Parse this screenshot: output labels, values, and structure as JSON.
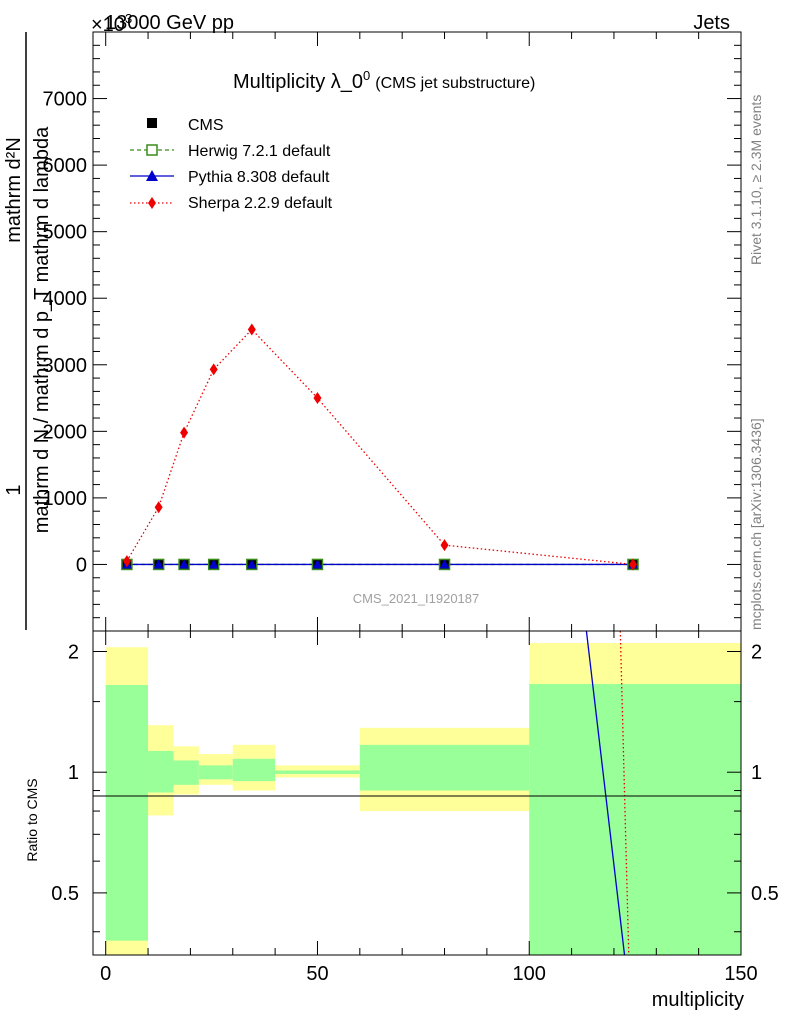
{
  "header": {
    "energy_label": "13000 GeV pp",
    "exponent_label": "×10",
    "exponent_sup": "3",
    "process_label": "Jets"
  },
  "side_labels": {
    "rivet": "Rivet 3.1.10, ≥ 2.3M events",
    "mcplots": "mcplots.cern.ch [arXiv:1306.3436]"
  },
  "watermark": "CMS_2021_I1920187",
  "ratio_ylabel": "Ratio to CMS",
  "colors": {
    "herwig": "#3a8c1a",
    "pythia": "#0000cc",
    "sherpa": "#ee0000",
    "band_inner": "#99ff99",
    "band_outer": "#ffff99"
  },
  "chart_data": [
    {
      "type": "line",
      "title": "Multiplicity λ_0",
      "title_sup": "0",
      "title_note": "(CMS jet substructure)",
      "xlabel": "multiplicity",
      "ylabel_numerator": "1",
      "ylabel_denominator": "mathrm d N / mathrm d p_T mathrm d lambda",
      "ylabel_extra": "mathrm d²N",
      "xlim": [
        -3,
        150
      ],
      "ylim": [
        -1000,
        8000
      ],
      "y_multiplier": "×10^3",
      "xticks": [
        0,
        50,
        100,
        150
      ],
      "yticks": [
        -1000,
        0,
        1000,
        2000,
        3000,
        4000,
        5000,
        6000,
        7000
      ],
      "legend_position": "top-left",
      "series": [
        {
          "name": "CMS",
          "style": "marker",
          "x": [
            5,
            12.5,
            18.5,
            25.5,
            34.5,
            50,
            80,
            124.5
          ],
          "y": [
            0,
            0,
            0,
            0,
            0,
            0,
            0,
            0
          ]
        },
        {
          "name": "Herwig 7.2.1 default",
          "style": "dashed",
          "x": [
            5,
            12.5,
            18.5,
            25.5,
            34.5,
            50,
            80,
            124.5
          ],
          "y": [
            0,
            0,
            0,
            0,
            0,
            0,
            0,
            0
          ]
        },
        {
          "name": "Pythia 8.308 default",
          "style": "solid",
          "x": [
            5,
            12.5,
            18.5,
            25.5,
            34.5,
            50,
            80,
            124.5
          ],
          "y": [
            0,
            0,
            0,
            0,
            0,
            0,
            0,
            0
          ]
        },
        {
          "name": "Sherpa 2.2.9 default",
          "style": "dotted",
          "x": [
            5,
            12.5,
            18.5,
            25.5,
            34.5,
            50,
            80,
            124.5
          ],
          "y": [
            50,
            860,
            1980,
            2930,
            3530,
            2500,
            290,
            0
          ]
        }
      ]
    },
    {
      "type": "area",
      "ylabel": "Ratio to CMS",
      "xlabel": "multiplicity",
      "xlim": [
        -3,
        150
      ],
      "ylim": [
        0.35,
        2.25
      ],
      "y_scale": "log",
      "xticks": [
        0,
        50,
        100,
        150
      ],
      "yticks": [
        0.5,
        1,
        2
      ],
      "bands": [
        {
          "x0": 0,
          "x1": 10,
          "inner": [
            0.38,
            1.65
          ],
          "outer": [
            0.35,
            2.05
          ]
        },
        {
          "x0": 10,
          "x1": 16,
          "inner": [
            0.89,
            1.13
          ],
          "outer": [
            0.78,
            1.31
          ]
        },
        {
          "x0": 16,
          "x1": 22,
          "inner": [
            0.93,
            1.07
          ],
          "outer": [
            0.88,
            1.16
          ]
        },
        {
          "x0": 22,
          "x1": 30,
          "inner": [
            0.96,
            1.04
          ],
          "outer": [
            0.93,
            1.11
          ]
        },
        {
          "x0": 30,
          "x1": 40,
          "inner": [
            0.95,
            1.08
          ],
          "outer": [
            0.9,
            1.17
          ]
        },
        {
          "x0": 40,
          "x1": 60,
          "inner": [
            0.99,
            1.01
          ],
          "outer": [
            0.97,
            1.04
          ]
        },
        {
          "x0": 60,
          "x1": 100,
          "inner": [
            0.9,
            1.17
          ],
          "outer": [
            0.8,
            1.29
          ]
        },
        {
          "x0": 100,
          "x1": 150,
          "inner": [
            0.35,
            1.66
          ],
          "outer": [
            0.35,
            2.1
          ]
        }
      ],
      "series": [
        {
          "name": "Pythia 8.308 default",
          "x": [
            113.5,
            122.5
          ],
          "y": [
            2.25,
            0.35
          ]
        },
        {
          "name": "Sherpa 2.2.9 default",
          "x": [
            121.5,
            123.5
          ],
          "y": [
            2.25,
            0.35
          ]
        }
      ]
    }
  ]
}
